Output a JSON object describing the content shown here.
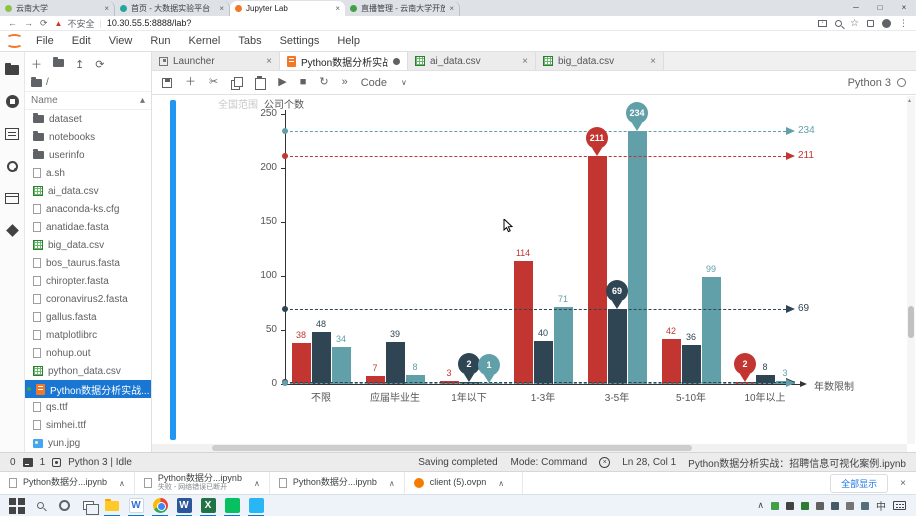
{
  "browser": {
    "tabs": [
      {
        "title": "云南大学",
        "color": "#8bc34a",
        "active": false
      },
      {
        "title": "首页 - 大数据实验平台",
        "color": "#26a69a",
        "active": false
      },
      {
        "title": "Jupyter Lab",
        "color": "#f37726",
        "active": true
      },
      {
        "title": "直播管理 - 云南大学开放平台…",
        "color": "#43a047",
        "active": false
      }
    ],
    "window_controls": [
      "─",
      "□",
      "×"
    ],
    "nav": {
      "back": "←",
      "forward": "→",
      "reload": "⟳"
    },
    "security_label": "不安全",
    "url": "10.30.55.5:8888/lab?",
    "close_glyph": "×"
  },
  "jupyterlab": {
    "menu": [
      "File",
      "Edit",
      "View",
      "Run",
      "Kernel",
      "Tabs",
      "Settings",
      "Help"
    ],
    "activity_icons": [
      "files",
      "running",
      "inspector",
      "settings",
      "tabs",
      "extensions"
    ],
    "file_browser": {
      "breadcrumb": "/",
      "header": "Name",
      "sort_arrow": "▴",
      "toolbar_icons": [
        "new-launcher",
        "new-folder",
        "upload",
        "refresh"
      ],
      "files": [
        {
          "name": "dataset",
          "type": "folder"
        },
        {
          "name": "notebooks",
          "type": "folder"
        },
        {
          "name": "userinfo",
          "type": "folder"
        },
        {
          "name": "a.sh",
          "type": "file"
        },
        {
          "name": "ai_data.csv",
          "type": "csv"
        },
        {
          "name": "anaconda-ks.cfg",
          "type": "file"
        },
        {
          "name": "anatidae.fasta",
          "type": "file"
        },
        {
          "name": "big_data.csv",
          "type": "csv"
        },
        {
          "name": "bos_taurus.fasta",
          "type": "file"
        },
        {
          "name": "chiropter.fasta",
          "type": "file"
        },
        {
          "name": "coronavirus2.fasta",
          "type": "file"
        },
        {
          "name": "gallus.fasta",
          "type": "file"
        },
        {
          "name": "matplotlibrc",
          "type": "file"
        },
        {
          "name": "nohup.out",
          "type": "file"
        },
        {
          "name": "python_data.csv",
          "type": "csv"
        },
        {
          "name": "Python数据分析实战...",
          "type": "notebook",
          "selected": true,
          "open": true
        },
        {
          "name": "qs.ttf",
          "type": "file"
        },
        {
          "name": "simhei.ttf",
          "type": "file"
        },
        {
          "name": "yun.jpg",
          "type": "image"
        }
      ]
    },
    "doc_tabs": [
      {
        "label": "Launcher",
        "icon": "launcher",
        "active": false,
        "dirty": false
      },
      {
        "label": "Python数据分析实战：招聘",
        "icon": "notebook",
        "active": true,
        "dirty": true
      },
      {
        "label": "ai_data.csv",
        "icon": "csv",
        "active": false,
        "dirty": false
      },
      {
        "label": "big_data.csv",
        "icon": "csv",
        "active": false,
        "dirty": false
      }
    ],
    "toolbar": {
      "cell_type": "Code",
      "caret": "∨",
      "kernel_name": "Python 3"
    },
    "status_bar": {
      "terminals": "0",
      "kernels": "1",
      "kernel_status": "Python 3 | Idle",
      "message": "Saving completed",
      "mode": "Mode: Command",
      "position": "Ln 28, Col 1",
      "filename": "Python数据分析实战：招聘信息可视化案例.ipynb"
    }
  },
  "chart_data": {
    "type": "bar",
    "legend_left": "全国范围",
    "ylabel": "公司个数",
    "xlabel": "年数限制",
    "categories": [
      "不限",
      "应届毕业生",
      "1年以下",
      "1-3年",
      "3-5年",
      "5-10年",
      "10年以上"
    ],
    "series": [
      {
        "name": "series-red",
        "color": "#c23531",
        "values": [
          38,
          7,
          3,
          114,
          211,
          42,
          2
        ]
      },
      {
        "name": "series-navy",
        "color": "#2f4554",
        "values": [
          48,
          39,
          2,
          40,
          69,
          36,
          8
        ]
      },
      {
        "name": "series-teal",
        "color": "#61a0a8",
        "values": [
          34,
          8,
          1,
          71,
          234,
          99,
          3
        ]
      }
    ],
    "ylim": [
      0,
      250
    ],
    "yticks": [
      0,
      50,
      100,
      150,
      200,
      250
    ],
    "mark_points": "max and min of each series drawn as balloon pins",
    "mark_lines": [
      {
        "series": "series-teal",
        "type": "max",
        "value": 234
      },
      {
        "series": "series-red",
        "type": "max",
        "value": 211
      },
      {
        "series": "series-navy",
        "type": "max",
        "value": 69
      },
      {
        "series": "series-red",
        "type": "min",
        "value": 2
      },
      {
        "series": "series-navy",
        "type": "min",
        "value": 2
      },
      {
        "series": "series-teal",
        "type": "min",
        "value": 1
      }
    ],
    "grid": false,
    "legend_position": "top"
  },
  "downloads": {
    "items": [
      {
        "label": "Python数据分...ipynb",
        "sub": "",
        "icon": "file"
      },
      {
        "label": "Python数据分...ipynb",
        "sub": "失败 - 网络错误已断开",
        "icon": "file"
      },
      {
        "label": "Python数据分...ipynb",
        "sub": "",
        "icon": "file"
      },
      {
        "label": "client (5).ovpn",
        "sub": "",
        "icon": "ovpn"
      }
    ],
    "show_all_label": "全部显示",
    "close": "×",
    "chevron": "∧"
  },
  "taskbar": {
    "apps": [
      {
        "id": "start",
        "open": false
      },
      {
        "id": "search",
        "open": false
      },
      {
        "id": "cortana",
        "open": false
      },
      {
        "id": "task-view",
        "open": false
      },
      {
        "id": "explorer",
        "open": true
      },
      {
        "id": "wps",
        "open": true,
        "letter": "W",
        "bg": "#ffffff",
        "fg": "#2f6fd6"
      },
      {
        "id": "chrome",
        "open": true
      },
      {
        "id": "word",
        "open": true,
        "letter": "W",
        "bg": "#2b579a",
        "fg": "#ffffff"
      },
      {
        "id": "excel",
        "open": true,
        "letter": "X",
        "bg": "#217346",
        "fg": "#ffffff"
      },
      {
        "id": "green-app",
        "open": true,
        "letter": "",
        "bg": "#07c160",
        "fg": "#ffffff"
      },
      {
        "id": "blue-app",
        "open": true,
        "letter": "",
        "bg": "#29b6f6",
        "fg": "#ffffff"
      }
    ],
    "tray_chevron": "∧",
    "tray_icons": [
      "#43a047",
      "#424242",
      "#2e7d32",
      "#616161",
      "#455a64",
      "#757575",
      "#546e7a"
    ],
    "ime_label": "中"
  }
}
